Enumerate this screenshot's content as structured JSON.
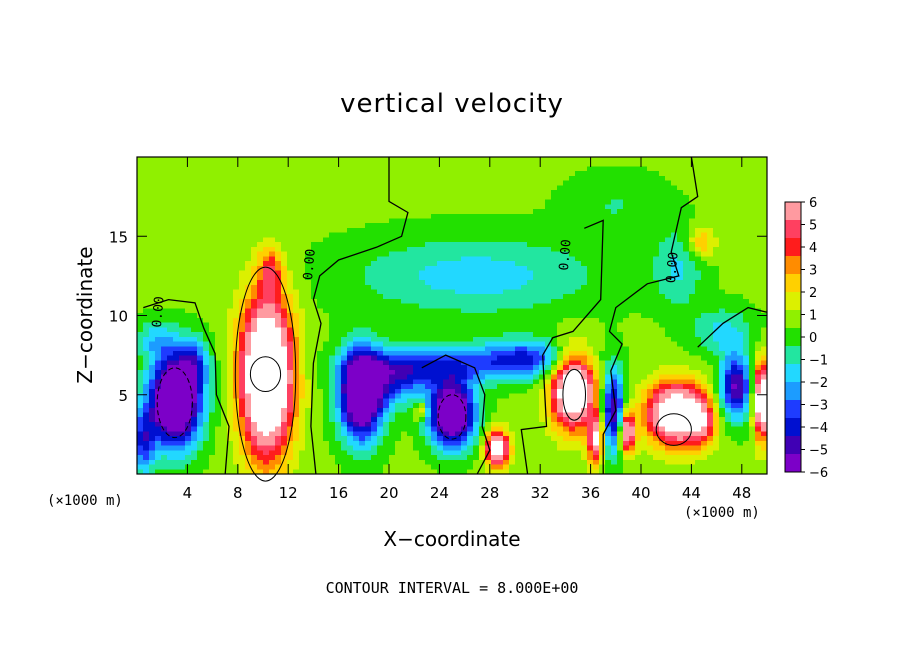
{
  "chart_data": {
    "type": "heatmap",
    "title": "vertical velocity",
    "xlabel": "X−coordinate",
    "ylabel": "Z−coordinate",
    "x_unit": "(×1000 m)",
    "x_unit_right": "(×1000 m)",
    "xlim": [
      0,
      50
    ],
    "ylim": [
      0,
      20
    ],
    "x_ticks": [
      4,
      8,
      12,
      16,
      20,
      24,
      28,
      32,
      36,
      40,
      44,
      48
    ],
    "x_tick_labels": [
      "4",
      "8",
      "12",
      "16",
      "20",
      "24",
      "28",
      "32",
      "36",
      "40",
      "44",
      "48"
    ],
    "y_ticks": [
      5,
      10,
      15
    ],
    "y_tick_labels": [
      "5",
      "10",
      "15"
    ],
    "colorbar": {
      "min": -6,
      "max": 6,
      "tick_labels": [
        "6",
        "5",
        "4",
        "3",
        "2",
        "1",
        "0",
        "−1",
        "−2",
        "−3",
        "−4",
        "−5",
        "−6"
      ],
      "colors": [
        "#ff9aa0",
        "#ff4060",
        "#ff1c1c",
        "#ff8c00",
        "#ffd000",
        "#dcf000",
        "#90f000",
        "#22e000",
        "#22e6a0",
        "#22d8ff",
        "#1c9cff",
        "#1e3cff",
        "#0010d0",
        "#4000b4",
        "#7c00c8"
      ]
    },
    "contour_labels": [
      {
        "x": 2.0,
        "y": 10.2,
        "text": "0.00"
      },
      {
        "x": 14.0,
        "y": 13.2,
        "text": "0.00"
      },
      {
        "x": 34.3,
        "y": 13.8,
        "text": "0.00"
      },
      {
        "x": 42.8,
        "y": 13.0,
        "text": "0.00"
      }
    ],
    "features": [
      {
        "x": 3.0,
        "z": 4.5,
        "w": -7
      },
      {
        "x": 10.2,
        "z": 6.3,
        "w": 8
      },
      {
        "x": 18.0,
        "z": 5.2,
        "w": -6
      },
      {
        "x": 25.0,
        "z": 3.8,
        "w": -6
      },
      {
        "x": 28.6,
        "z": 1.6,
        "w": 6
      },
      {
        "x": 34.5,
        "z": 5.0,
        "w": 6
      },
      {
        "x": 38.8,
        "z": 2.5,
        "w": 5
      },
      {
        "x": 42.5,
        "z": 3.3,
        "w": 7
      },
      {
        "x": 49.5,
        "z": 4.5,
        "w": 6
      },
      {
        "x": 27.0,
        "z": 13.0,
        "w": -2
      },
      {
        "x": 44.5,
        "z": 14.5,
        "w": 3
      }
    ]
  },
  "footer": "CONTOUR INTERVAL =  8.000E+00"
}
